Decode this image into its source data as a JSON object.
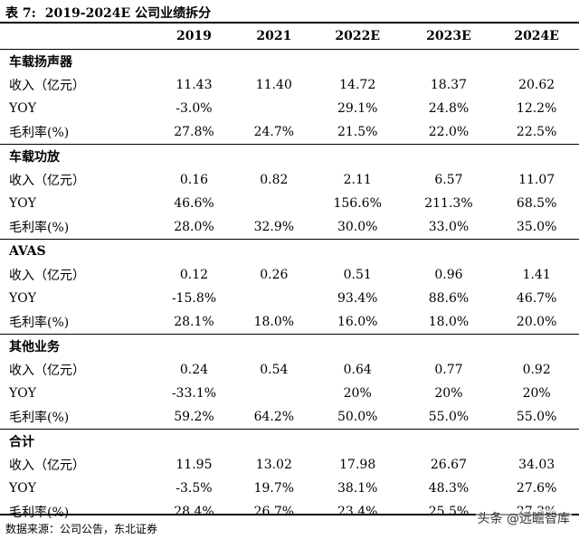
{
  "title": {
    "label": "表 7:",
    "text": "2019-2024E 公司业绩拆分"
  },
  "columns": [
    "2019",
    "2021",
    "2022E",
    "2023E",
    "2024E"
  ],
  "sections": [
    {
      "name": "车载扬声器",
      "rows": [
        {
          "label": "收入（亿元）",
          "values": [
            "11.43",
            "11.40",
            "14.72",
            "18.37",
            "20.62"
          ]
        },
        {
          "label": "YOY",
          "values": [
            "-3.0%",
            "",
            "29.1%",
            "24.8%",
            "12.2%"
          ]
        },
        {
          "label": "毛利率(%)",
          "values": [
            "27.8%",
            "24.7%",
            "21.5%",
            "22.0%",
            "22.5%"
          ]
        }
      ]
    },
    {
      "name": "车载功放",
      "rows": [
        {
          "label": "收入（亿元）",
          "values": [
            "0.16",
            "0.82",
            "2.11",
            "6.57",
            "11.07"
          ]
        },
        {
          "label": "YOY",
          "values": [
            "46.6%",
            "",
            "156.6%",
            "211.3%",
            "68.5%"
          ]
        },
        {
          "label": "毛利率(%)",
          "values": [
            "28.0%",
            "32.9%",
            "30.0%",
            "33.0%",
            "35.0%"
          ]
        }
      ]
    },
    {
      "name": "AVAS",
      "rows": [
        {
          "label": "收入（亿元）",
          "values": [
            "0.12",
            "0.26",
            "0.51",
            "0.96",
            "1.41"
          ]
        },
        {
          "label": "YOY",
          "values": [
            "-15.8%",
            "",
            "93.4%",
            "88.6%",
            "46.7%"
          ]
        },
        {
          "label": "毛利率(%)",
          "values": [
            "28.1%",
            "18.0%",
            "16.0%",
            "18.0%",
            "20.0%"
          ]
        }
      ]
    },
    {
      "name": "其他业务",
      "rows": [
        {
          "label": "收入（亿元）",
          "values": [
            "0.24",
            "0.54",
            "0.64",
            "0.77",
            "0.92"
          ]
        },
        {
          "label": "YOY",
          "values": [
            "-33.1%",
            "",
            "20%",
            "20%",
            "20%"
          ]
        },
        {
          "label": "毛利率(%)",
          "values": [
            "59.2%",
            "64.2%",
            "50.0%",
            "55.0%",
            "55.0%"
          ]
        }
      ]
    },
    {
      "name": "合计",
      "rows": [
        {
          "label": "收入（亿元）",
          "values": [
            "11.95",
            "13.02",
            "17.98",
            "26.67",
            "34.03"
          ]
        },
        {
          "label": "YOY",
          "values": [
            "-3.5%",
            "19.7%",
            "38.1%",
            "48.3%",
            "27.6%"
          ]
        },
        {
          "label": "毛利率(%)",
          "values": [
            "28.4%",
            "26.7%",
            "23.4%",
            "25.5%",
            "27.3%"
          ]
        }
      ]
    }
  ],
  "footer": "数据来源：公司公告，东北证券",
  "watermark": "头条 @远瞻智库"
}
